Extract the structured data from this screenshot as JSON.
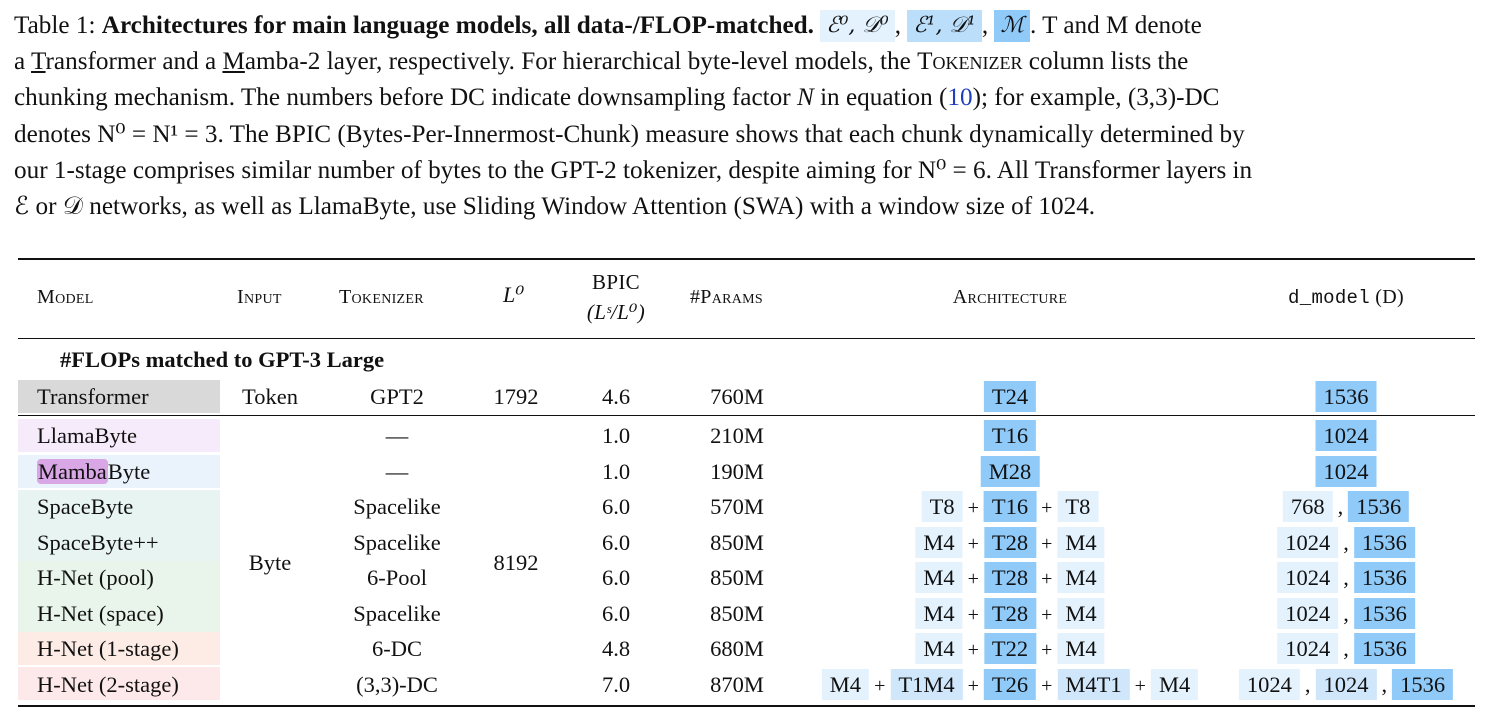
{
  "caption": {
    "label": "Table 1:",
    "title": "Architectures for main language models, all data-/FLOP-matched.",
    "chip0": "ℰ⁰, 𝒟⁰",
    "chip1": "ℰ¹, 𝒟¹",
    "chip2": "ℳ",
    "after_chips": ". T and M denote",
    "line2_a": "a ",
    "t_letter": "T",
    "line2_b": "ransformer and a ",
    "m_letter": "M",
    "line2_c": "amba-2 layer, respectively.  For hierarchical byte-level models, the ",
    "tokenizer_word": "Tokenizer",
    "line2_d": " column lists the",
    "line3": "chunking mechanism. The numbers before DC indicate downsampling factor ",
    "line3_n": "N",
    "line3_b": " in equation (",
    "eq_ref": "10",
    "line3_c": "); for example, (3,3)-DC",
    "line4": "denotes N⁰ = N¹ = 3. The BPIC (Bytes-Per-Innermost-Chunk) measure shows that each chunk dynamically determined by",
    "line5": "our 1-stage comprises similar number of bytes to the GPT-2 tokenizer, despite aiming for N⁰ = 6. All Transformer layers in",
    "line6": "ℰ or 𝒟 networks, as well as LlamaByte, use Sliding Window Attention (SWA) with a window size of 1024."
  },
  "headers": {
    "model": "Model",
    "input": "Input",
    "tokenizer": "Tokenizer",
    "l0": "L⁰",
    "bpic": "BPIC",
    "bpic_sub": "(Lˢ/L⁰)",
    "params": "#Params",
    "architecture": "Architecture",
    "dmodel_code": "d_model",
    "dmodel_suffix": "(D)"
  },
  "section": "#FLOPs matched to GPT-3 Large",
  "transformer_row": {
    "model": "Transformer",
    "input": "Token",
    "tokenizer": "GPT2",
    "l0": "1792",
    "bpic": "4.6",
    "params": "760M",
    "arch": "T24",
    "d": "1536"
  },
  "shared": {
    "input": "Byte",
    "l0": "8192"
  },
  "rows": [
    {
      "model": "LlamaByte",
      "tokenizer": "—",
      "bpic": "1.0",
      "params": "210M"
    },
    {
      "model_hl": "Mamba",
      "model_rest": "Byte",
      "tokenizer": "—",
      "bpic": "1.0",
      "params": "190M"
    },
    {
      "model": "SpaceByte",
      "tokenizer": "Spacelike",
      "bpic": "6.0",
      "params": "570M"
    },
    {
      "model": "SpaceByte++",
      "tokenizer": "Spacelike",
      "bpic": "6.0",
      "params": "850M"
    },
    {
      "model": "H-Net (pool)",
      "tokenizer": "6-Pool",
      "bpic": "6.0",
      "params": "850M"
    },
    {
      "model": "H-Net (space)",
      "tokenizer": "Spacelike",
      "bpic": "6.0",
      "params": "850M"
    },
    {
      "model": "H-Net (1-stage)",
      "tokenizer": "6-DC",
      "bpic": "4.8",
      "params": "680M"
    },
    {
      "model": "H-Net (2-stage)",
      "tokenizer": "(3,3)-DC",
      "bpic": "7.0",
      "params": "870M"
    }
  ],
  "arch": {
    "r0": "T16",
    "r1": "M28",
    "r2": [
      "T8",
      "T16",
      "T8"
    ],
    "r3": [
      "M4",
      "T28",
      "M4"
    ],
    "r4": [
      "M4",
      "T28",
      "M4"
    ],
    "r5": [
      "M4",
      "T28",
      "M4"
    ],
    "r6": [
      "M4",
      "T22",
      "M4"
    ],
    "r7": [
      "M4",
      "T1M4",
      "T26",
      "M4T1",
      "M4"
    ],
    "plus": "+"
  },
  "dmodel": {
    "r0": "1024",
    "r1": "1024",
    "r2": [
      "768",
      "1536"
    ],
    "r3": [
      "1024",
      "1536"
    ],
    "r4": [
      "1024",
      "1536"
    ],
    "r5": [
      "1024",
      "1536"
    ],
    "r6": [
      "1024",
      "1536"
    ],
    "r7": [
      "1024",
      "1024",
      "1536"
    ],
    "comma": ","
  },
  "colors": {
    "transformer_bg": "#d9d9d9",
    "llamabyte_bg": "#f6ebfa",
    "mambabyte_bg": "#eaf2fb",
    "mamba_highlight": "#d9a6e6",
    "spacebyte_bg": "#e8f4f1",
    "hnet_pool_bg": "#e9f5ea",
    "hnet_1stage_bg": "#fdece6",
    "hnet_2stage_bg": "#fde8ea",
    "stage0": "#e3f2fd",
    "stage1": "#cfe6fb",
    "stage2": "#90caf9"
  }
}
